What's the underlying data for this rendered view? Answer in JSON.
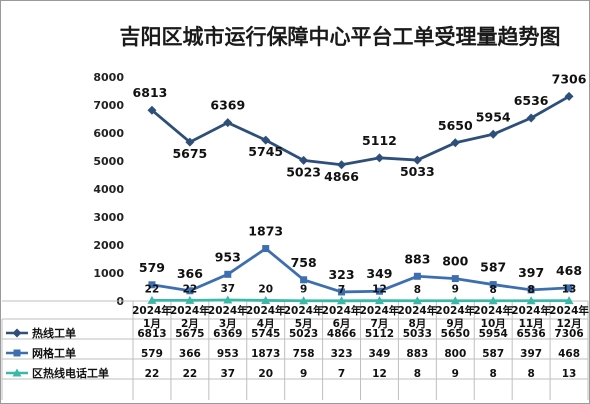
{
  "title": "吉阳区城市运行保障中心平台工单受理量趋势图",
  "chart_data": {
    "type": "line",
    "title": "吉阳区城市运行保障中心平台工单受理量趋势图",
    "categories": [
      [
        "2024年",
        "1月"
      ],
      [
        "2024年",
        "2月"
      ],
      [
        "2024年",
        "3月"
      ],
      [
        "2024年",
        "4月"
      ],
      [
        "2024年",
        "5月"
      ],
      [
        "2024年",
        "6月"
      ],
      [
        "2024年",
        "7月"
      ],
      [
        "2024年",
        "8月"
      ],
      [
        "2024年",
        "9月"
      ],
      [
        "2024年",
        "10月"
      ],
      [
        "2024年",
        "11月"
      ],
      [
        "2024年",
        "12月"
      ]
    ],
    "ylim": [
      0,
      8000
    ],
    "yticks": [
      0,
      1000,
      2000,
      3000,
      4000,
      5000,
      6000,
      7000,
      8000
    ],
    "grid": false,
    "legend": "data-table-bottom",
    "series": [
      {
        "name": "热线工单",
        "color": "#2e4f7a",
        "marker": "diamond",
        "values": [
          6813,
          5675,
          6369,
          5745,
          5023,
          4866,
          5112,
          5033,
          5650,
          5954,
          6536,
          7306
        ]
      },
      {
        "name": "网格工单",
        "color": "#3d6fb0",
        "marker": "square",
        "values": [
          579,
          366,
          953,
          1873,
          758,
          323,
          349,
          883,
          800,
          587,
          397,
          468
        ]
      },
      {
        "name": "区热线电话工单",
        "color": "#3cb8a8",
        "marker": "triangle",
        "values": [
          22,
          22,
          37,
          20,
          9,
          7,
          12,
          8,
          9,
          8,
          8,
          13
        ]
      }
    ]
  }
}
